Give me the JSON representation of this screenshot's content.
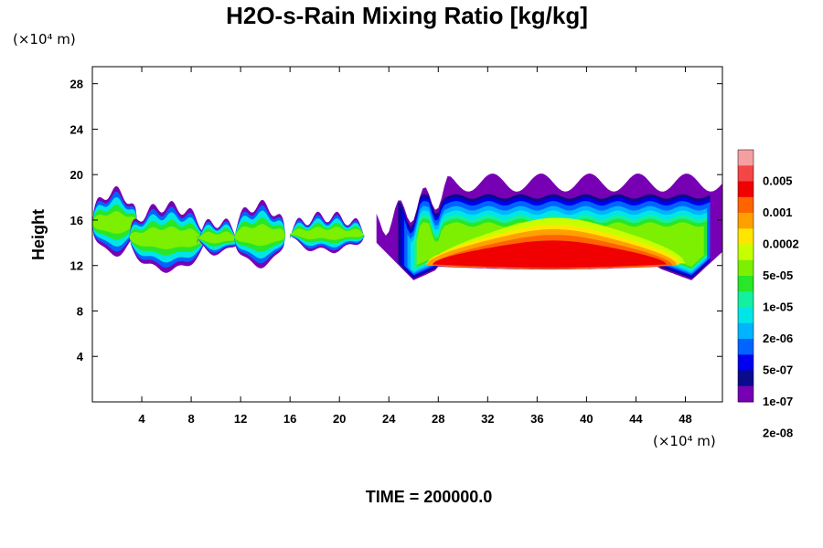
{
  "chart_data": {
    "type": "heatmap",
    "title": "H2O-s-Rain Mixing Ratio [kg/kg]",
    "ylabel": "Height",
    "xlabel": "",
    "x_unit": "(×10⁴ m)",
    "y_unit": "(×10⁴ m)",
    "xlim": [
      0,
      51
    ],
    "ylim": [
      0,
      29.5
    ],
    "x_ticks": [
      4,
      8,
      12,
      16,
      20,
      24,
      28,
      32,
      36,
      40,
      44,
      48
    ],
    "y_ticks": [
      4,
      8,
      12,
      16,
      20,
      24,
      28
    ],
    "colorbar": {
      "colors": [
        "#f5a0a0",
        "#f54646",
        "#f00000",
        "#ff6400",
        "#ffa000",
        "#ffe600",
        "#c8ff00",
        "#7cf000",
        "#28e628",
        "#14f0a0",
        "#00e6e6",
        "#00b4ff",
        "#0064ff",
        "#0000f0",
        "#0a0a8c",
        "#7800b4"
      ],
      "labels": [
        "0.005",
        "0.001",
        "0.0002",
        "5e-05",
        "1e-05",
        "2e-06",
        "5e-07",
        "1e-07",
        "2e-08"
      ]
    },
    "footer": "TIME = 200000.0"
  }
}
